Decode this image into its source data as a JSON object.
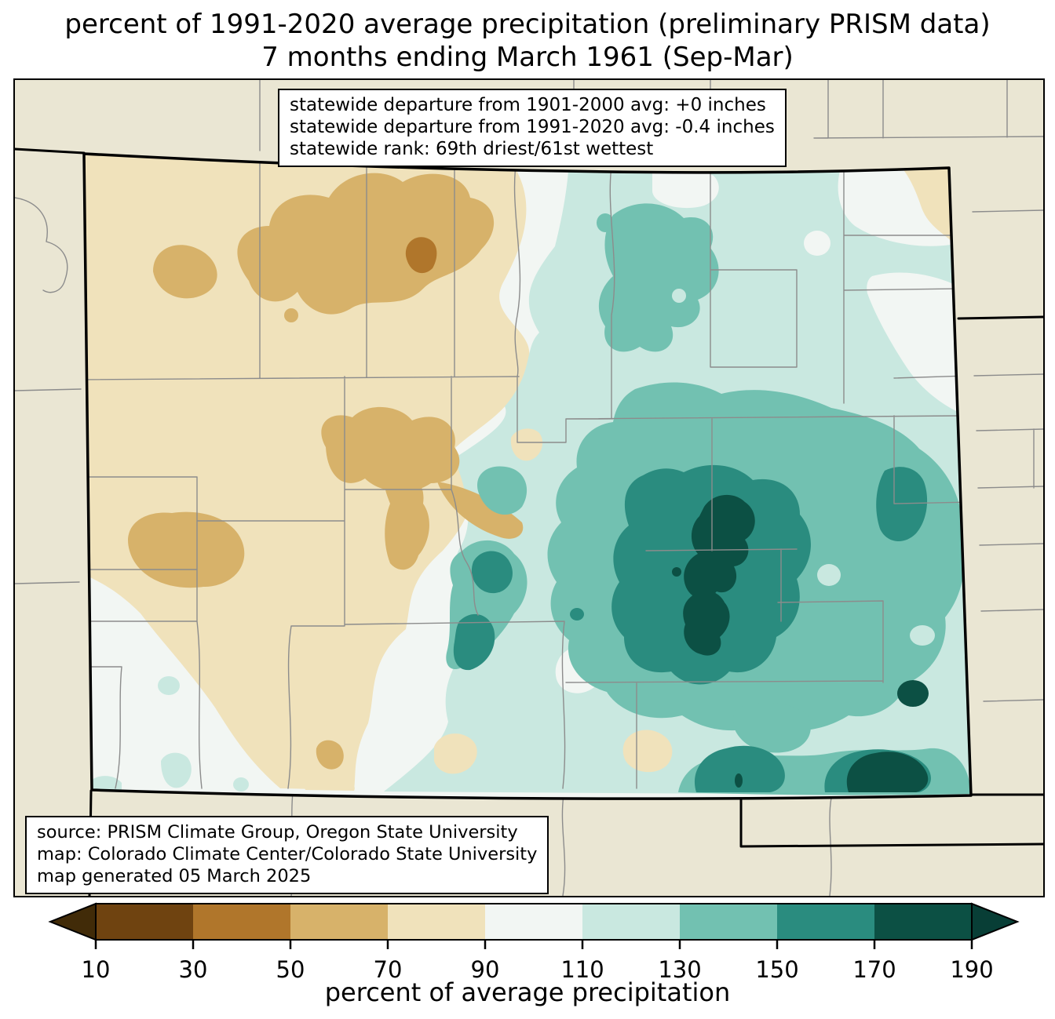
{
  "title": {
    "line1": "percent of 1991-2020 average precipitation (preliminary PRISM data)",
    "line2": "7 months ending March 1961 (Sep-Mar)"
  },
  "stats_box": {
    "lines": [
      "statewide departure from 1901-2000 avg: +0 inches",
      "statewide departure from 1991-2020 avg: -0.4 inches",
      "statewide rank: 69th driest/61st wettest"
    ]
  },
  "source_box": {
    "lines": [
      "source: PRISM Climate Group, Oregon State University",
      "map: Colorado Climate Center/Colorado State University",
      "map generated 05 March 2025"
    ]
  },
  "colorbar": {
    "label": "percent of average precipitation",
    "ticks": [
      "10",
      "30",
      "50",
      "70",
      "90",
      "110",
      "130",
      "150",
      "170",
      "190"
    ],
    "segment_colors": [
      "#6F4310",
      "#B0762B",
      "#D7B26A",
      "#F0E2BB",
      "#F2F6F3",
      "#C9E8E0",
      "#72C1B1",
      "#2A8C7F",
      "#0C5044"
    ],
    "under_arrow_color": "#412B08",
    "over_arrow_color": "#083E36",
    "outline_color": "#000000"
  },
  "map": {
    "region": "Colorado",
    "outside_fill": "#EAE6D3",
    "county_line_color": "#8C8C8C",
    "state_border_color": "#000000",
    "band_colors": {
      "b30": "#B0762B",
      "b50": "#D7B26A",
      "b70": "#F0E2BB",
      "b90": "#F2F6F3",
      "b110": "#C9E8E0",
      "b130": "#72C1B1",
      "b150": "#2A8C7F",
      "b170": "#0C5044"
    }
  }
}
